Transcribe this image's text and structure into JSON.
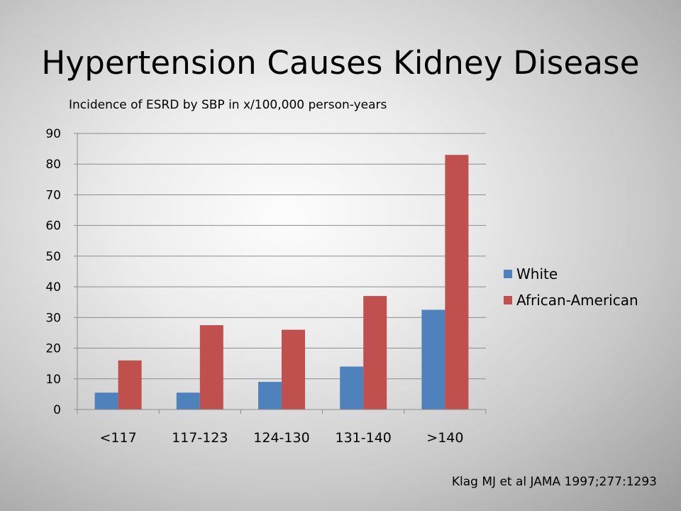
{
  "slide": {
    "title": "Hypertension Causes Kidney Disease",
    "citation": "Klag MJ et al JAMA 1997;277:1293"
  },
  "chart_data": {
    "type": "bar",
    "title": "Incidence of ESRD by SBP in x/100,000 person-years",
    "xlabel": "",
    "ylabel": "",
    "categories": [
      "<117",
      "117-123",
      "124-130",
      "131-140",
      ">140"
    ],
    "series": [
      {
        "name": "White",
        "values": [
          5.5,
          5.5,
          9,
          14,
          32.5
        ],
        "color": "#4F81BD"
      },
      {
        "name": "African-American",
        "values": [
          16,
          27.5,
          26,
          37,
          83
        ],
        "color": "#C0504D"
      }
    ],
    "ylim": [
      0,
      90
    ],
    "yticks": [
      0,
      10,
      20,
      30,
      40,
      50,
      60,
      70,
      80,
      90
    ],
    "grid": true,
    "legend": "right"
  }
}
